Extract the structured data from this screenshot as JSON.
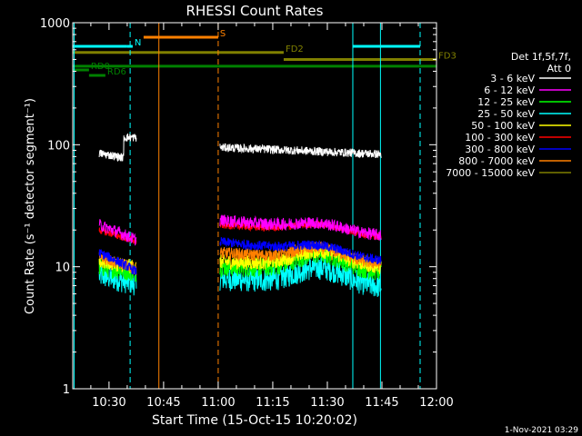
{
  "chart_data": {
    "type": "line",
    "title": "RHESSI Count Rates",
    "xlabel": "Start Time (15-Oct-15 10:20:02)",
    "ylabel": "Count Rate (s⁻¹ detector segment⁻¹)",
    "y_scale": "log",
    "ylim": [
      1,
      1000
    ],
    "y_ticks": [
      {
        "value": 1,
        "label": "1"
      },
      {
        "value": 10,
        "label": "10"
      },
      {
        "value": 100,
        "label": "100"
      },
      {
        "value": 1000,
        "label": "1000"
      }
    ],
    "x_range_minutes": [
      20.03,
      120
    ],
    "x_ticks": [
      {
        "value": 30,
        "label": "10:30"
      },
      {
        "value": 45,
        "label": "10:45"
      },
      {
        "value": 60,
        "label": "11:00"
      },
      {
        "value": 75,
        "label": "11:15"
      },
      {
        "value": 90,
        "label": "11:30"
      },
      {
        "value": 105,
        "label": "11:45"
      },
      {
        "value": 120,
        "label": "12:00"
      }
    ],
    "grid": false,
    "legend": {
      "placement": "right",
      "header": [
        "Det 1f,5f,7f,",
        "Att 0"
      ]
    },
    "series": [
      {
        "name": "3 - 6 keV",
        "color": "#ffffff",
        "level_a": 85,
        "level_b": 95,
        "trend": -0.12,
        "peak": 0.0,
        "noise": 0.035
      },
      {
        "name": "6 - 12 keV",
        "color": "#ff00ff",
        "level_a": 22,
        "level_b": 24,
        "trend": -0.25,
        "peak": 0.12,
        "noise": 0.05
      },
      {
        "name": "12 - 25 keV",
        "color": "#00ff00",
        "level_a": 10,
        "level_b": 10,
        "trend": -0.1,
        "peak": 0.35,
        "noise": 0.08
      },
      {
        "name": "25 - 50 keV",
        "color": "#00ffff",
        "level_a": 8.5,
        "level_b": 8,
        "trend": -0.15,
        "peak": 0.35,
        "noise": 0.1
      },
      {
        "name": "50 - 100 keV",
        "color": "#ffff00",
        "level_a": 11,
        "level_b": 11,
        "trend": -0.1,
        "peak": 0.3,
        "noise": 0.06
      },
      {
        "name": "100 - 300 keV",
        "color": "#ff0000",
        "level_a": 20,
        "level_b": 22,
        "trend": -0.2,
        "peak": 0.15,
        "noise": 0.03
      },
      {
        "name": "300 - 800 keV",
        "color": "#0000ff",
        "level_a": 13,
        "level_b": 16,
        "trend": -0.3,
        "peak": 0.15,
        "noise": 0.04
      },
      {
        "name": "800 - 7000 keV",
        "color": "#ff8000",
        "level_a": 12,
        "level_b": 13,
        "trend": -0.2,
        "peak": 0.25,
        "noise": 0.05
      },
      {
        "name": "7000 - 15000 keV",
        "color": "#808000",
        "level_a": 0,
        "level_b": 0,
        "trend": 0,
        "peak": 0,
        "noise": 0
      }
    ],
    "data_intervals_minutes": [
      [
        27.3,
        37.5
      ],
      [
        60.5,
        104.8
      ]
    ],
    "flag_bars": [
      {
        "label": "",
        "color": "#00ffff",
        "x": [
          20.03,
          35.0
        ],
        "y": 640
      },
      {
        "label": "N",
        "color": "#00ffff",
        "x": [
          35.0,
          36.5
        ],
        "y": 640
      },
      {
        "label": "",
        "color": "#00ffff",
        "x": [
          97.0,
          115.5
        ],
        "y": 640
      },
      {
        "label": "S",
        "color": "#ff8000",
        "x": [
          39.5,
          60.0
        ],
        "y": 760
      },
      {
        "label": "FD2",
        "color": "#808000",
        "x": [
          20.03,
          78.0
        ],
        "y": 570
      },
      {
        "label": "FD3",
        "color": "#808000",
        "x": [
          78.0,
          120.0
        ],
        "y": 500
      },
      {
        "label": "",
        "color": "#008000",
        "x": [
          20.03,
          120.0
        ],
        "y": 440
      },
      {
        "label": "RD6",
        "color": "#008000",
        "x": [
          24.5,
          29.0
        ],
        "y": 370
      },
      {
        "label": "RD0",
        "color": "#008000",
        "x": [
          20.03,
          24.5
        ],
        "y": 410
      }
    ],
    "vertical_markers": [
      {
        "x": 20.4,
        "color": "#00ffff",
        "style": "solid"
      },
      {
        "x": 35.8,
        "color": "#00ffff",
        "style": "dashed"
      },
      {
        "x": 43.7,
        "color": "#ff8000",
        "style": "solid"
      },
      {
        "x": 60.0,
        "color": "#ff8000",
        "style": "dashed"
      },
      {
        "x": 97.0,
        "color": "#00ffff",
        "style": "solid"
      },
      {
        "x": 104.6,
        "color": "#00ffff",
        "style": "solid"
      },
      {
        "x": 115.5,
        "color": "#00ffff",
        "style": "dashed"
      }
    ]
  },
  "timestamp": "1-Nov-2021 03:29"
}
